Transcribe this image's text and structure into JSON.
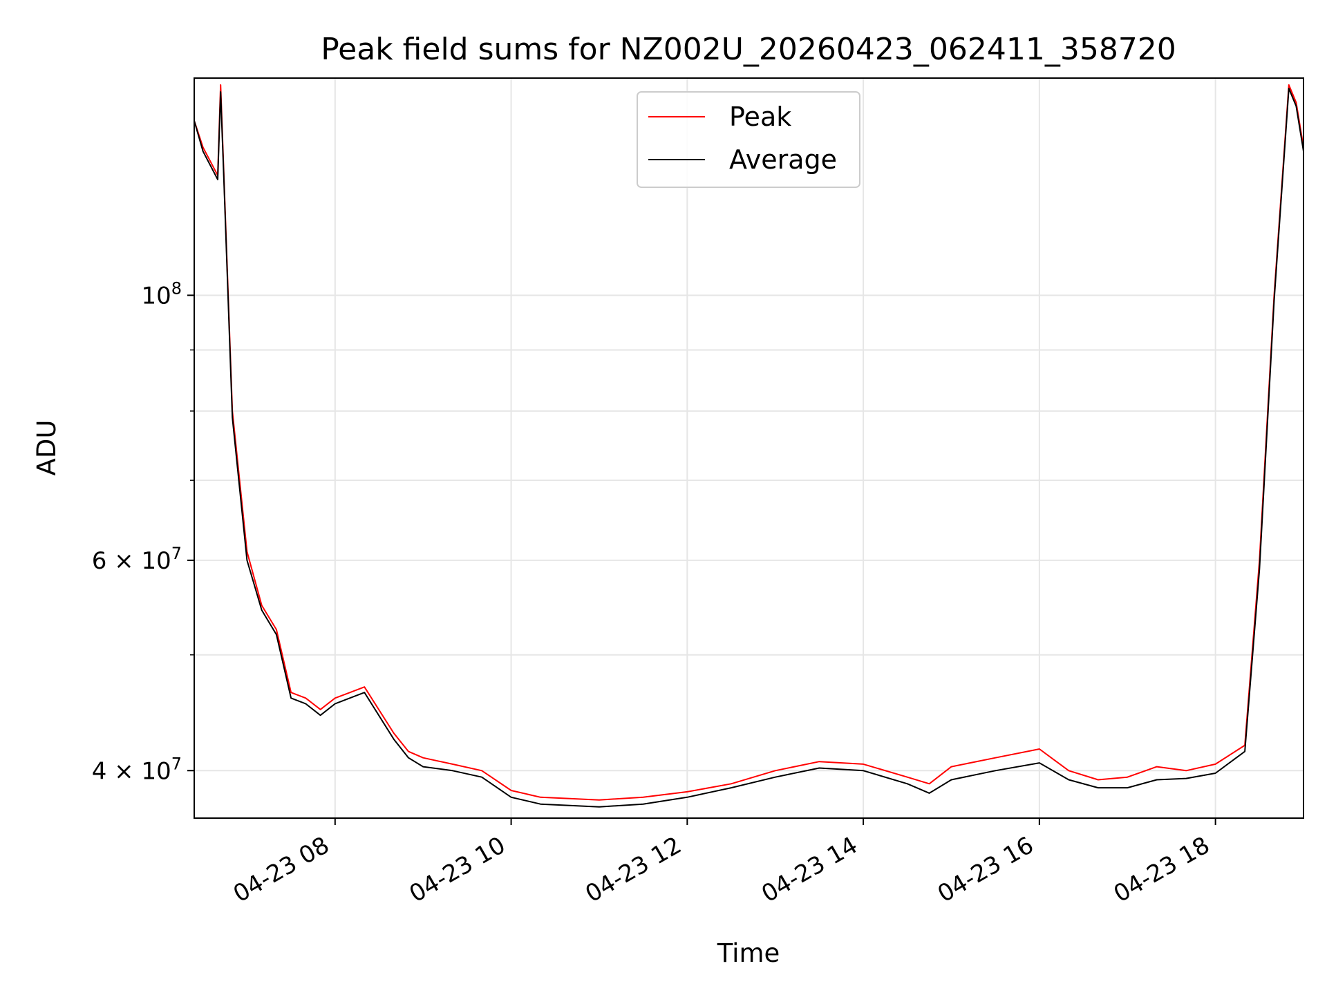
{
  "chart_data": {
    "type": "line",
    "title": "Peak field sums for NZ002U_20260423_062411_358720",
    "xlabel": "Time",
    "ylabel": "ADU",
    "yscale": "log",
    "ylim": [
      36500000,
      152000000
    ],
    "xlim": [
      "2026-04-23 06:24",
      "2026-04-23 19:00"
    ],
    "grid": true,
    "legend": {
      "placement": "top-center"
    },
    "xticks": [
      {
        "t": "2026-04-23 08:00",
        "label": "04-23 08"
      },
      {
        "t": "2026-04-23 10:00",
        "label": "04-23 10"
      },
      {
        "t": "2026-04-23 12:00",
        "label": "04-23 12"
      },
      {
        "t": "2026-04-23 14:00",
        "label": "04-23 14"
      },
      {
        "t": "2026-04-23 16:00",
        "label": "04-23 16"
      },
      {
        "t": "2026-04-23 18:00",
        "label": "04-23 18"
      }
    ],
    "yticks_major": [
      {
        "v": 40000000,
        "mant": "4",
        "exp": "7"
      },
      {
        "v": 60000000,
        "mant": "6",
        "exp": "7"
      },
      {
        "v": 100000000,
        "mant": "",
        "exp": "8"
      }
    ],
    "yticks_minor": [
      50000000,
      70000000,
      80000000,
      90000000
    ],
    "series": [
      {
        "name": "Peak",
        "color": "#ff0000",
        "x": [
          "2026-04-23 06:24",
          "2026-04-23 06:30",
          "2026-04-23 06:40",
          "2026-04-23 06:42",
          "2026-04-23 06:44",
          "2026-04-23 06:50",
          "2026-04-23 07:00",
          "2026-04-23 07:10",
          "2026-04-23 07:20",
          "2026-04-23 07:30",
          "2026-04-23 07:40",
          "2026-04-23 07:50",
          "2026-04-23 08:00",
          "2026-04-23 08:20",
          "2026-04-23 08:40",
          "2026-04-23 08:50",
          "2026-04-23 09:00",
          "2026-04-23 09:20",
          "2026-04-23 09:40",
          "2026-04-23 10:00",
          "2026-04-23 10:20",
          "2026-04-23 11:00",
          "2026-04-23 11:30",
          "2026-04-23 12:00",
          "2026-04-23 12:30",
          "2026-04-23 13:00",
          "2026-04-23 13:30",
          "2026-04-23 14:00",
          "2026-04-23 14:30",
          "2026-04-23 14:45",
          "2026-04-23 15:00",
          "2026-04-23 15:30",
          "2026-04-23 16:00",
          "2026-04-23 16:20",
          "2026-04-23 16:40",
          "2026-04-23 17:00",
          "2026-04-23 17:20",
          "2026-04-23 17:40",
          "2026-04-23 18:00",
          "2026-04-23 18:20",
          "2026-04-23 18:30",
          "2026-04-23 18:40",
          "2026-04-23 18:50",
          "2026-04-23 18:55",
          "2026-04-23 19:00"
        ],
        "y": [
          140000000,
          133000000,
          126000000,
          150000000,
          128000000,
          80000000,
          61000000,
          55000000,
          52500000,
          46500000,
          46000000,
          45000000,
          46000000,
          47000000,
          43000000,
          41500000,
          41000000,
          40500000,
          40000000,
          38500000,
          38000000,
          37800000,
          38000000,
          38400000,
          39000000,
          40000000,
          40700000,
          40500000,
          39500000,
          39000000,
          40300000,
          41000000,
          41700000,
          40000000,
          39300000,
          39500000,
          40300000,
          40000000,
          40500000,
          42000000,
          60000000,
          100000000,
          150000000,
          145000000,
          133000000
        ]
      },
      {
        "name": "Average",
        "color": "#000000",
        "x": [
          "2026-04-23 06:24",
          "2026-04-23 06:30",
          "2026-04-23 06:40",
          "2026-04-23 06:42",
          "2026-04-23 06:44",
          "2026-04-23 06:50",
          "2026-04-23 07:00",
          "2026-04-23 07:10",
          "2026-04-23 07:20",
          "2026-04-23 07:30",
          "2026-04-23 07:40",
          "2026-04-23 07:50",
          "2026-04-23 08:00",
          "2026-04-23 08:20",
          "2026-04-23 08:40",
          "2026-04-23 08:50",
          "2026-04-23 09:00",
          "2026-04-23 09:20",
          "2026-04-23 09:40",
          "2026-04-23 10:00",
          "2026-04-23 10:20",
          "2026-04-23 11:00",
          "2026-04-23 11:30",
          "2026-04-23 12:00",
          "2026-04-23 12:30",
          "2026-04-23 13:00",
          "2026-04-23 13:30",
          "2026-04-23 14:00",
          "2026-04-23 14:30",
          "2026-04-23 14:45",
          "2026-04-23 15:00",
          "2026-04-23 15:30",
          "2026-04-23 16:00",
          "2026-04-23 16:20",
          "2026-04-23 16:40",
          "2026-04-23 17:00",
          "2026-04-23 17:20",
          "2026-04-23 17:40",
          "2026-04-23 18:00",
          "2026-04-23 18:20",
          "2026-04-23 18:30",
          "2026-04-23 18:40",
          "2026-04-23 18:50",
          "2026-04-23 18:55",
          "2026-04-23 19:00"
        ],
        "y": [
          140000000,
          132000000,
          125000000,
          148000000,
          127000000,
          79000000,
          60000000,
          54500000,
          52000000,
          46000000,
          45500000,
          44500000,
          45500000,
          46500000,
          42500000,
          41000000,
          40300000,
          40000000,
          39500000,
          38000000,
          37500000,
          37300000,
          37500000,
          38000000,
          38700000,
          39500000,
          40200000,
          40000000,
          39000000,
          38300000,
          39300000,
          40000000,
          40600000,
          39300000,
          38700000,
          38700000,
          39300000,
          39400000,
          39800000,
          41500000,
          59000000,
          99000000,
          149000000,
          144000000,
          132000000
        ]
      }
    ]
  }
}
